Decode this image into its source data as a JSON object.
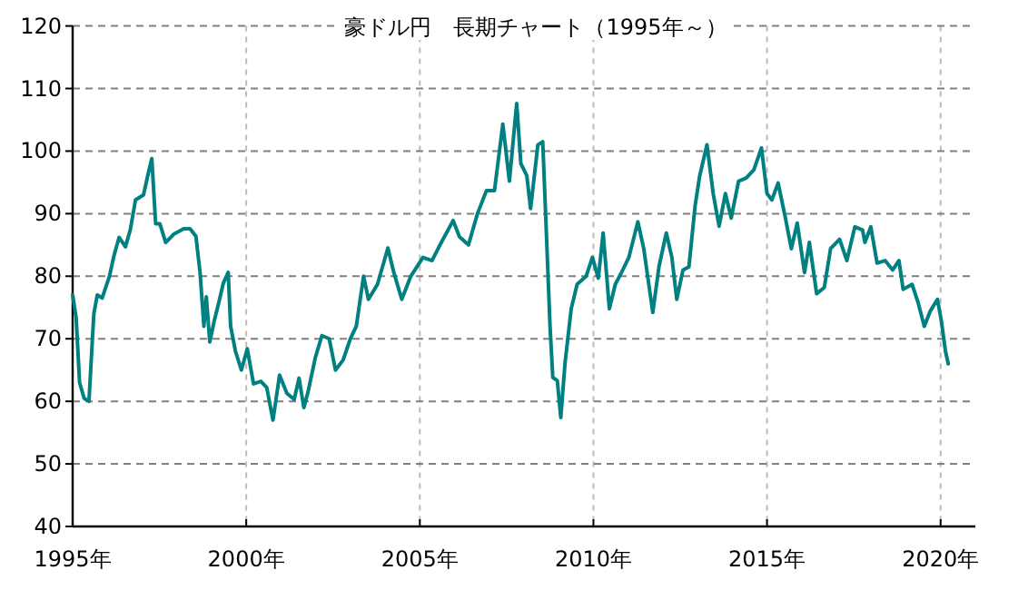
{
  "chart_data": {
    "type": "line",
    "title": "豪ドル円　長期チャート（1995年～）",
    "x": [
      1995.0,
      1995.1,
      1995.2,
      1995.33,
      1995.47,
      1995.61,
      1995.71,
      1995.85,
      1996.06,
      1996.2,
      1996.34,
      1996.52,
      1996.66,
      1996.81,
      1997.04,
      1997.16,
      1997.28,
      1997.39,
      1997.51,
      1997.68,
      1997.91,
      1998.2,
      1998.38,
      1998.55,
      1998.67,
      1998.78,
      1998.85,
      1998.95,
      1999.08,
      1999.21,
      1999.34,
      1999.48,
      1999.55,
      1999.69,
      1999.86,
      2000.03,
      2000.21,
      2000.42,
      2000.59,
      2000.77,
      2000.96,
      2001.17,
      2001.38,
      2001.52,
      2001.66,
      2001.78,
      2001.99,
      2002.18,
      2002.39,
      2002.57,
      2002.79,
      2003.0,
      2003.17,
      2003.38,
      2003.52,
      2003.78,
      2004.08,
      2004.25,
      2004.48,
      2004.74,
      2005.09,
      2005.35,
      2005.61,
      2005.96,
      2006.14,
      2006.4,
      2006.66,
      2006.92,
      2007.15,
      2007.39,
      2007.58,
      2007.79,
      2007.91,
      2008.08,
      2008.19,
      2008.4,
      2008.54,
      2008.62,
      2008.75,
      2008.83,
      2008.96,
      2009.06,
      2009.18,
      2009.36,
      2009.53,
      2009.79,
      2009.97,
      2010.14,
      2010.28,
      2010.46,
      2010.63,
      2010.81,
      2011.02,
      2011.28,
      2011.45,
      2011.71,
      2011.89,
      2012.1,
      2012.26,
      2012.4,
      2012.58,
      2012.75,
      2012.93,
      2013.06,
      2013.27,
      2013.45,
      2013.62,
      2013.8,
      2013.97,
      2014.18,
      2014.4,
      2014.62,
      2014.84,
      2015.0,
      2015.14,
      2015.32,
      2015.53,
      2015.7,
      2015.87,
      2016.08,
      2016.22,
      2016.43,
      2016.65,
      2016.83,
      2017.09,
      2017.3,
      2017.53,
      2017.75,
      2017.82,
      2017.99,
      2018.17,
      2018.4,
      2018.62,
      2018.8,
      2018.92,
      2019.18,
      2019.35,
      2019.53,
      2019.7,
      2019.91,
      2020.02,
      2020.14,
      2020.22
    ],
    "series": [
      {
        "color": "#008080",
        "values": [
          77,
          73.4,
          63,
          60.5,
          60,
          74,
          77,
          76.5,
          80,
          83.5,
          86.2,
          84.7,
          87.4,
          92.2,
          93,
          96,
          98.8,
          88.4,
          88.4,
          85.4,
          86.7,
          87.6,
          87.6,
          86.4,
          80.6,
          72,
          76.7,
          69.5,
          72.9,
          75.8,
          78.9,
          80.6,
          72,
          68,
          65,
          68.4,
          62.8,
          63.2,
          62.2,
          57,
          64.2,
          61.3,
          60.3,
          63.7,
          59,
          61.5,
          67,
          70.5,
          70,
          65,
          66.6,
          70,
          72,
          80,
          76.3,
          78.7,
          84.5,
          80.6,
          76.3,
          80,
          83,
          82.5,
          85.3,
          88.9,
          86.3,
          85,
          90,
          93.7,
          93.7,
          104.3,
          95.2,
          107.6,
          98,
          96.1,
          90.8,
          101,
          101.5,
          90.4,
          72,
          63.8,
          63.3,
          57.4,
          66,
          74.8,
          78.7,
          80,
          83,
          79.7,
          86.9,
          74.8,
          78.7,
          80.6,
          83,
          88.7,
          84.4,
          74.2,
          81.6,
          86.9,
          83,
          76.3,
          81,
          81.5,
          91.3,
          96,
          101,
          93.2,
          88,
          93.2,
          89.3,
          95.2,
          95.7,
          97,
          100.5,
          93.2,
          92.2,
          94.9,
          89.3,
          84.4,
          88.5,
          80.6,
          85.4,
          77.2,
          78.2,
          84.4,
          85.9,
          82.5,
          87.9,
          87.4,
          85.4,
          87.9,
          82.1,
          82.5,
          81,
          82.5,
          77.9,
          78.7,
          75.8,
          72,
          74.4,
          76.3,
          72.9,
          68,
          66
        ]
      }
    ],
    "xlim": [
      1995,
      2021
    ],
    "xticks": [
      {
        "value": 1995,
        "label": "1995年"
      },
      {
        "value": 2000,
        "label": "2000年"
      },
      {
        "value": 2005,
        "label": "2005年"
      },
      {
        "value": 2010,
        "label": "2010年"
      },
      {
        "value": 2015,
        "label": "2015年"
      },
      {
        "value": 2020,
        "label": "2020年"
      }
    ],
    "ylim": [
      40,
      120
    ],
    "yticks": [
      40,
      50,
      60,
      70,
      80,
      90,
      100,
      110,
      120
    ],
    "grid": true,
    "line_style": "solid"
  }
}
